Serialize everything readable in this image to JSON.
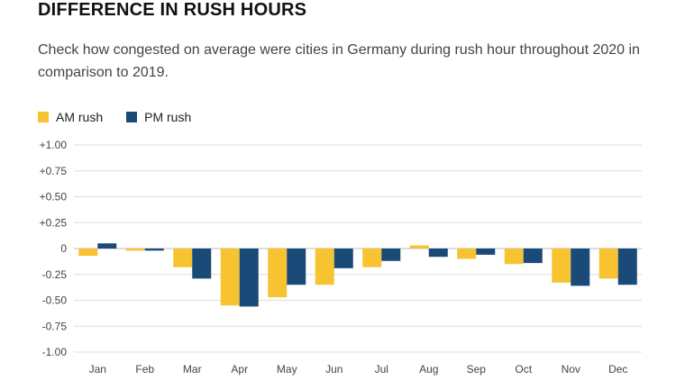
{
  "header": {
    "title": "DIFFERENCE IN RUSH HOURS",
    "subtitle": "Check how congested on average were cities in Germany during rush hour throughout 2020 in comparison to 2019."
  },
  "colors": {
    "am": "#f7c331",
    "pm": "#1a4a78",
    "grid": "#dddddd",
    "zero": "#bbbbbb"
  },
  "chart_data": {
    "type": "bar",
    "title": "DIFFERENCE IN RUSH HOURS",
    "xlabel": "",
    "ylabel": "",
    "categories": [
      "Jan",
      "Feb",
      "Mar",
      "Apr",
      "May",
      "Jun",
      "Jul",
      "Aug",
      "Sep",
      "Oct",
      "Nov",
      "Dec"
    ],
    "series": [
      {
        "name": "AM rush",
        "values": [
          -0.07,
          -0.02,
          -0.18,
          -0.55,
          -0.47,
          -0.35,
          -0.18,
          0.03,
          -0.1,
          -0.15,
          -0.33,
          -0.29
        ]
      },
      {
        "name": "PM rush",
        "values": [
          0.05,
          -0.02,
          -0.29,
          -0.56,
          -0.35,
          -0.19,
          -0.12,
          -0.08,
          -0.06,
          -0.14,
          -0.36,
          -0.35
        ]
      }
    ],
    "ylim": [
      -1.0,
      1.0
    ],
    "yticks": [
      1.0,
      0.75,
      0.5,
      0.25,
      0,
      -0.25,
      -0.5,
      -0.75,
      -1.0
    ],
    "ytick_labels": [
      "+1.00",
      "+0.75",
      "+0.50",
      "+0.25",
      "0",
      "-0.25",
      "-0.50",
      "-0.75",
      "-1.00"
    ],
    "grid": true,
    "legend": "top-left"
  }
}
